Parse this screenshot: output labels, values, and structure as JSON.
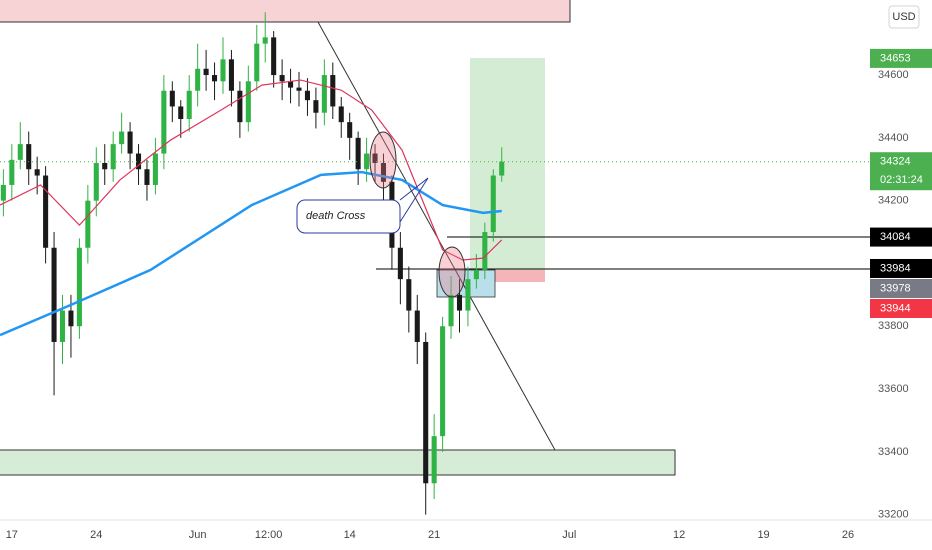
{
  "chart_data": {
    "type": "candlestick",
    "currency": "USD",
    "countdown": "02:31:24",
    "annotation": "death Cross",
    "up_color": "#2fb344",
    "down_color": "#1a1a1a",
    "xlim": [
      -0.7,
      50.8
    ],
    "ylim": [
      33183,
      34839
    ],
    "xticks": [
      {
        "value": 0,
        "label": "17"
      },
      {
        "value": 5,
        "label": "24"
      },
      {
        "value": 11,
        "label": "Jun"
      },
      {
        "value": 15.2,
        "label": "12:00"
      },
      {
        "value": 20,
        "label": "14"
      },
      {
        "value": 25,
        "label": "21"
      },
      {
        "value": 33,
        "label": "Jul"
      },
      {
        "value": 39.5,
        "label": "12"
      },
      {
        "value": 44.5,
        "label": "19"
      },
      {
        "value": 49.5,
        "label": "26"
      }
    ],
    "yticks": [
      33200,
      33400,
      33600,
      33800,
      34000,
      34200,
      34400,
      34600
    ],
    "x": [
      -0.5,
      0,
      0.5,
      1,
      1.5,
      2,
      2.5,
      3,
      3.5,
      4,
      4.5,
      5,
      5.5,
      6,
      6.5,
      7,
      7.5,
      8,
      8.5,
      9,
      9.5,
      10,
      10.5,
      11,
      11.5,
      12,
      12.5,
      13,
      13.5,
      14,
      14.5,
      15,
      15.5,
      16,
      16.5,
      17,
      17.5,
      18,
      18.5,
      19,
      19.5,
      20,
      20.5,
      21,
      21.5,
      22,
      22.5,
      23,
      23.5,
      24,
      24.5,
      25,
      25.5,
      26,
      26.5,
      27,
      27.5,
      28,
      28.5,
      29
    ],
    "open": [
      34200,
      34250,
      34330,
      34380,
      34300,
      34280,
      34050,
      33750,
      33850,
      33800,
      34050,
      34200,
      34320,
      34300,
      34380,
      34420,
      34350,
      34300,
      34250,
      34350,
      34550,
      34500,
      34460,
      34550,
      34620,
      34600,
      34580,
      34650,
      34550,
      34450,
      34580,
      34700,
      34720,
      34600,
      34580,
      34560,
      34550,
      34520,
      34480,
      34600,
      34500,
      34450,
      34400,
      34300,
      34350,
      34320,
      34260,
      34050,
      33950,
      33850,
      33750,
      33300,
      33450,
      33800,
      33900,
      33850,
      33950,
      33980,
      34100,
      34280
    ],
    "high": [
      34300,
      34380,
      34450,
      34420,
      34340,
      34310,
      34100,
      33900,
      33900,
      34080,
      34250,
      34370,
      34380,
      34420,
      34480,
      34450,
      34380,
      34330,
      34400,
      34600,
      34580,
      34520,
      34600,
      34700,
      34680,
      34640,
      34720,
      34680,
      34580,
      34630,
      34760,
      34800,
      34740,
      34650,
      34620,
      34610,
      34590,
      34560,
      34650,
      34640,
      34530,
      34480,
      34420,
      34400,
      34380,
      34350,
      34280,
      34100,
      33990,
      33900,
      33780,
      33520,
      33830,
      33960,
      33950,
      33990,
      34030,
      34130,
      34300,
      34370
    ],
    "low": [
      34150,
      34200,
      34300,
      34250,
      34220,
      34000,
      33580,
      33680,
      33700,
      33760,
      34000,
      34150,
      34250,
      34260,
      34350,
      34300,
      34250,
      34200,
      34220,
      34300,
      34450,
      34400,
      34420,
      34500,
      34550,
      34520,
      34540,
      34500,
      34400,
      34420,
      34550,
      34640,
      34560,
      34520,
      34510,
      34500,
      34470,
      34430,
      34440,
      34460,
      34400,
      34330,
      34250,
      34260,
      34260,
      34200,
      33980,
      33870,
      33780,
      33680,
      33200,
      33250,
      33400,
      33760,
      33780,
      33800,
      33920,
      33950,
      34070,
      34260
    ],
    "close": [
      34250,
      34330,
      34380,
      34300,
      34280,
      34050,
      33750,
      33850,
      33800,
      34050,
      34200,
      34320,
      34300,
      34380,
      34420,
      34350,
      34300,
      34250,
      34350,
      34550,
      34500,
      34460,
      34550,
      34620,
      34600,
      34580,
      34650,
      34550,
      34450,
      34580,
      34700,
      34720,
      34600,
      34580,
      34560,
      34550,
      34520,
      34480,
      34600,
      34500,
      34450,
      34400,
      34300,
      34350,
      34320,
      34260,
      34050,
      33950,
      33850,
      33750,
      33300,
      33450,
      33800,
      33900,
      33850,
      33950,
      33980,
      34100,
      34280,
      34324
    ],
    "overlays": [
      {
        "color": "#e0345c",
        "x": [
          -0.7,
          1.7,
          4,
          6.4,
          9.4,
          12.4,
          14.8,
          17.1,
          19.5,
          21.3,
          23.1,
          24.3,
          25.5,
          26.7,
          27.9,
          29
        ],
        "values": [
          34186,
          34250,
          34122,
          34266,
          34393,
          34489,
          34568,
          34584,
          34552,
          34489,
          34361,
          34202,
          34043,
          34011,
          34017,
          34075
        ]
      },
      {
        "color": "#2196f3",
        "x": [
          -0.7,
          3.5,
          8.2,
          14.2,
          18.3,
          20.7,
          23.1,
          25.5,
          27.9,
          29
        ],
        "values": [
          33772,
          33868,
          33979,
          34186,
          34282,
          34291,
          34266,
          34186,
          34161,
          34167
        ]
      }
    ],
    "price_labels": [
      {
        "value": 34653,
        "color": "#4caf50"
      },
      {
        "value": 34324,
        "color": "#4caf50"
      },
      {
        "value": 34084,
        "color": "#000000"
      },
      {
        "value": 33984,
        "color": "#000000"
      },
      {
        "value": 33978,
        "color": "#787b86"
      },
      {
        "value": 33944,
        "color": "#f23645"
      }
    ]
  }
}
